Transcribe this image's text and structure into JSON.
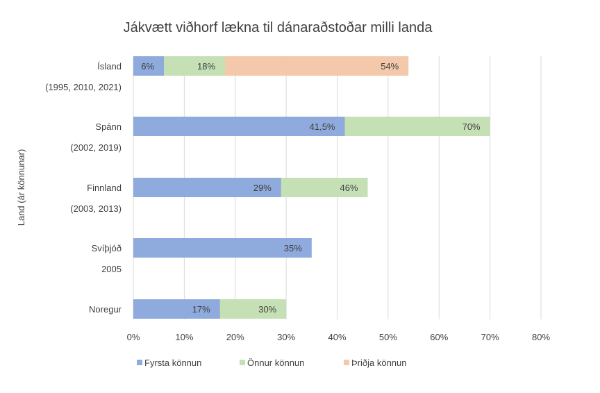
{
  "chart_data": {
    "type": "bar",
    "orientation": "horizontal",
    "title": "Jákvætt viðhorf lækna til dánaraðstoðar milli landa",
    "ylabel": "Land (ár könnunar)",
    "xlabel": "",
    "xlim": [
      0,
      80
    ],
    "x_ticks": [
      "0%",
      "10%",
      "20%",
      "30%",
      "40%",
      "50%",
      "60%",
      "70%",
      "80%"
    ],
    "grid": true,
    "legend_position": "bottom",
    "categories": [
      {
        "name": "Ísland",
        "sub": "(1995, 2010, 2021)"
      },
      {
        "name": "Spánn",
        "sub": "(2002, 2019)"
      },
      {
        "name": "Finnland",
        "sub": "(2003, 2013)"
      },
      {
        "name": "Svíþjóð",
        "sub": "2005"
      },
      {
        "name": "Noregur",
        "sub": ""
      }
    ],
    "series": [
      {
        "name": "Fyrsta könnun",
        "color": "#8faadc",
        "values": [
          6,
          41.5,
          29,
          35,
          17
        ],
        "labels": [
          "6%",
          "41,5%",
          "29%",
          "35%",
          "17%"
        ]
      },
      {
        "name": "Önnur könnun",
        "color": "#c5e0b4",
        "values": [
          18,
          70,
          46,
          null,
          30
        ],
        "labels": [
          "18%",
          "70%",
          "46%",
          null,
          "30%"
        ]
      },
      {
        "name": "Þriðja könnun",
        "color": "#f4c9ab",
        "values": [
          54,
          null,
          null,
          null,
          null
        ],
        "labels": [
          "54%",
          null,
          null,
          null,
          null
        ]
      }
    ]
  }
}
